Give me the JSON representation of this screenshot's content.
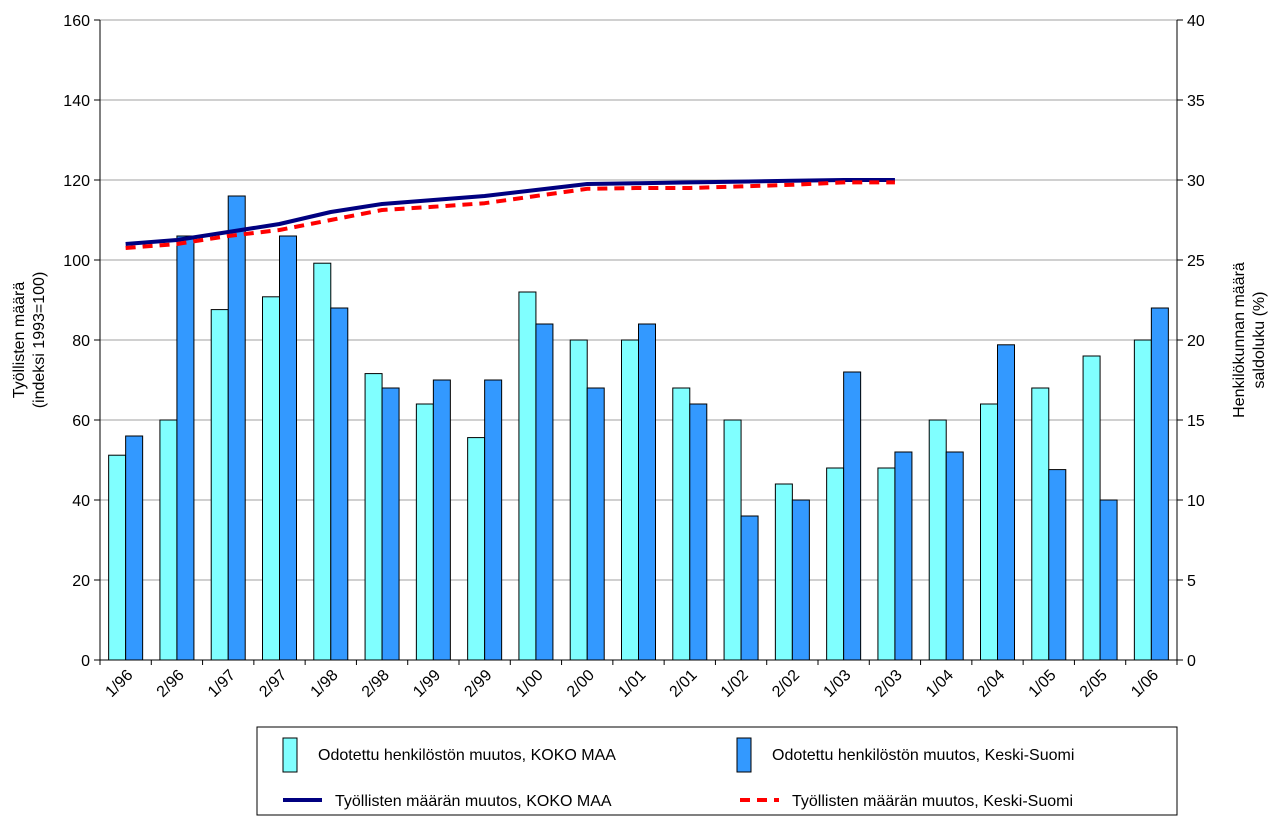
{
  "chart_data": {
    "type": "bar",
    "categories": [
      "1/96",
      "2/96",
      "1/97",
      "2/97",
      "1/98",
      "2/98",
      "1/99",
      "2/99",
      "1/00",
      "2/00",
      "1/01",
      "2/01",
      "1/02",
      "2/02",
      "1/03",
      "2/03",
      "1/04",
      "2/04",
      "1/05",
      "2/05",
      "1/06"
    ],
    "left_axis": {
      "label_line1": "Työllisten määrä",
      "label_line2": "(indeksi 1993=100)",
      "min": 0,
      "max": 160,
      "step": 20
    },
    "right_axis": {
      "label_line1": "Henkilökunnan määrä",
      "label_line2": "saldoluku (%)",
      "min": 0,
      "max": 40,
      "step": 5
    },
    "grid": true,
    "legend_position": "bottom",
    "bar_series": [
      {
        "name": "Odotettu henkilöstön muutos, KOKO MAA",
        "axis": "right",
        "color": "#80ffff",
        "values": [
          12.8,
          15.0,
          21.9,
          22.7,
          24.8,
          17.9,
          16.0,
          13.9,
          23.0,
          20.0,
          20.0,
          17.0,
          15.0,
          11.0,
          12.0,
          12.0,
          15.0,
          16.0,
          17.0,
          19.0,
          20.0
        ]
      },
      {
        "name": "Odotettu henkilöstön muutos, Keski-Suomi",
        "axis": "right",
        "color": "#3399ff",
        "values": [
          14.0,
          26.5,
          29.0,
          26.5,
          22.0,
          17.0,
          17.5,
          17.5,
          21.0,
          17.0,
          21.0,
          16.0,
          9.0,
          10.0,
          18.0,
          13.0,
          13.0,
          19.7,
          11.9,
          10.0,
          22.0
        ]
      }
    ],
    "line_series": [
      {
        "name": "Työllisten määrän  muutos, KOKO MAA",
        "axis": "left",
        "color": "#000080",
        "dash": "solid",
        "values": [
          104,
          105,
          107,
          109,
          112,
          114,
          115,
          116,
          117.5,
          119,
          119.2,
          119.4,
          119.6,
          119.8,
          120,
          120
        ]
      },
      {
        "name": "Työllisten määrän muutos, Keski-Suomi",
        "axis": "left",
        "color": "#ff0000",
        "dash": "dashed",
        "values": [
          103,
          104,
          106,
          107.5,
          110,
          112.5,
          113.3,
          114.2,
          116,
          117.8,
          118,
          118,
          118.4,
          118.8,
          119.4,
          119.4
        ]
      }
    ]
  }
}
